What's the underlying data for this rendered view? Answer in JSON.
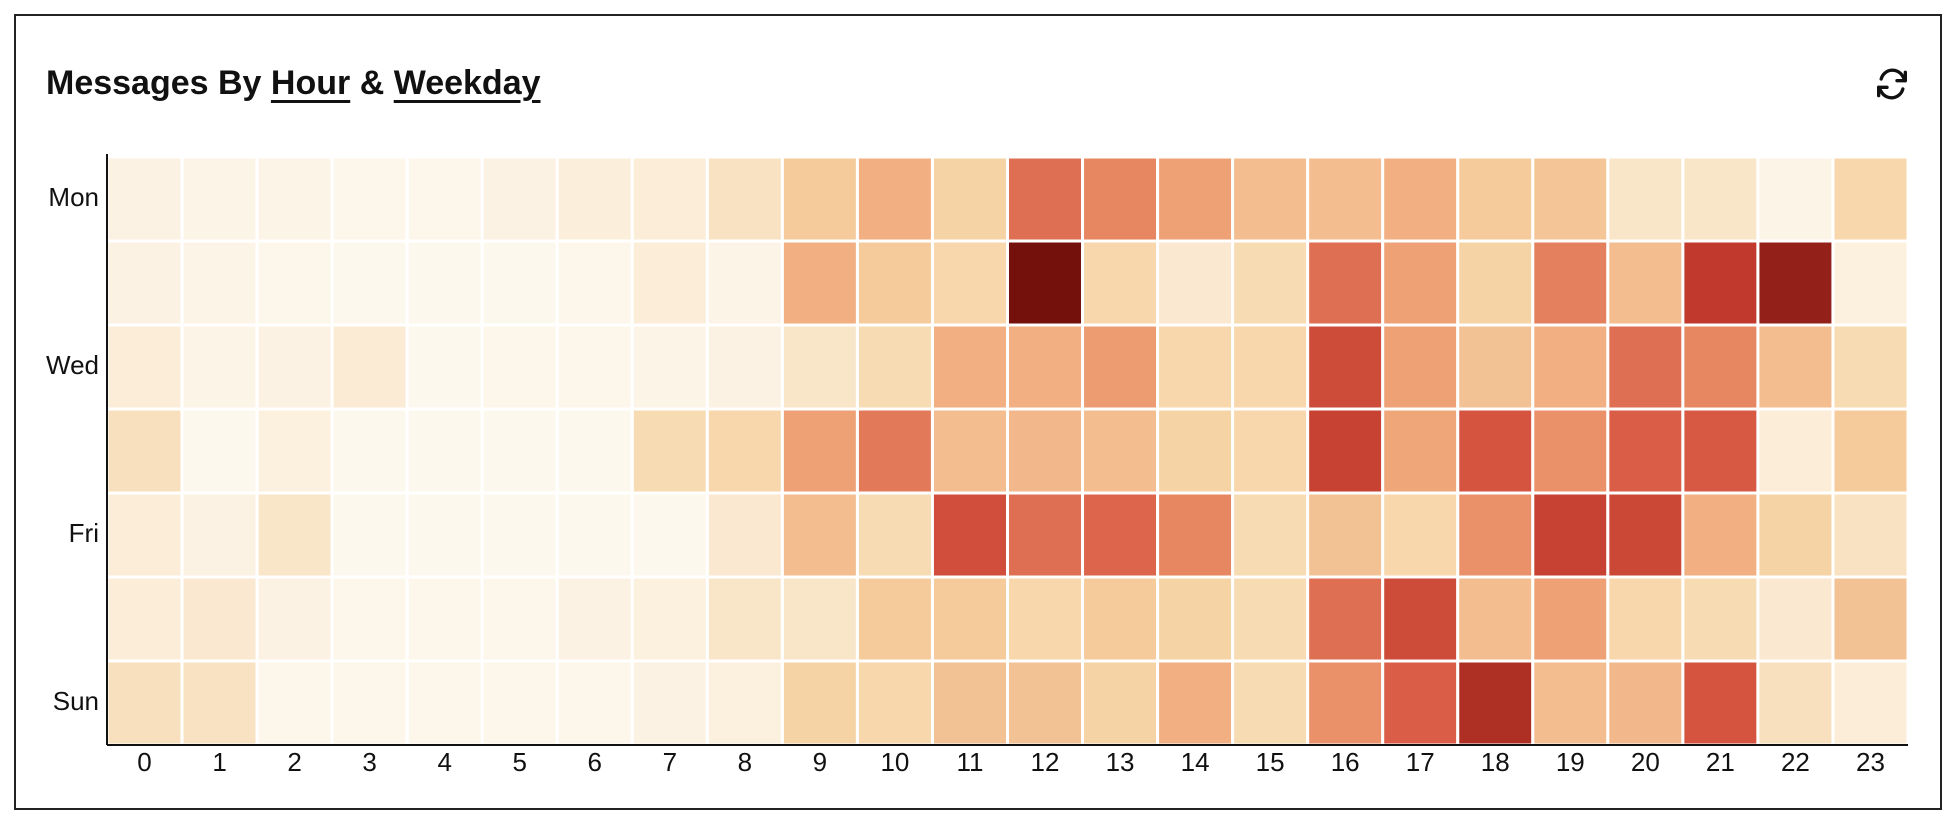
{
  "chart_data": {
    "type": "heatmap",
    "title": "Messages By",
    "x_selector": "Hour",
    "joiner": "&",
    "y_selector": "Weekday",
    "x": [
      0,
      1,
      2,
      3,
      4,
      5,
      6,
      7,
      8,
      9,
      10,
      11,
      12,
      13,
      14,
      15,
      16,
      17,
      18,
      19,
      20,
      21,
      22,
      23
    ],
    "y": [
      "Mon",
      null,
      "Wed",
      null,
      "Fri",
      null,
      "Sun"
    ],
    "colorscale": [
      "#fdf8ee",
      "#f6d4a5",
      "#ee9e72",
      "#d95b45",
      "#c0382b",
      "#74110d"
    ],
    "values": [
      [
        5,
        4,
        4,
        3,
        3,
        5,
        7,
        8,
        14,
        25,
        35,
        22,
        55,
        48,
        40,
        30,
        30,
        35,
        25,
        27,
        12,
        12,
        4,
        20
      ],
      [
        5,
        4,
        3,
        2,
        2,
        2,
        3,
        8,
        4,
        35,
        25,
        20,
        100,
        20,
        10,
        18,
        55,
        40,
        22,
        50,
        30,
        80,
        92,
        6
      ],
      [
        8,
        4,
        5,
        9,
        2,
        3,
        3,
        4,
        5,
        12,
        18,
        35,
        35,
        42,
        20,
        20,
        70,
        40,
        28,
        35,
        55,
        48,
        30,
        18
      ],
      [
        15,
        2,
        6,
        2,
        2,
        2,
        2,
        18,
        20,
        40,
        52,
        30,
        32,
        30,
        22,
        20,
        75,
        38,
        65,
        45,
        60,
        62,
        8,
        25
      ],
      [
        8,
        5,
        12,
        2,
        2,
        2,
        2,
        2,
        10,
        30,
        18,
        68,
        55,
        58,
        48,
        18,
        28,
        20,
        45,
        75,
        72,
        35,
        22,
        14
      ],
      [
        8,
        10,
        5,
        3,
        3,
        3,
        5,
        6,
        12,
        12,
        25,
        25,
        20,
        25,
        22,
        18,
        55,
        70,
        30,
        40,
        20,
        18,
        10,
        28
      ],
      [
        15,
        14,
        3,
        3,
        3,
        3,
        3,
        5,
        6,
        22,
        20,
        28,
        28,
        22,
        35,
        18,
        45,
        60,
        85,
        30,
        32,
        65,
        15,
        8
      ]
    ]
  }
}
